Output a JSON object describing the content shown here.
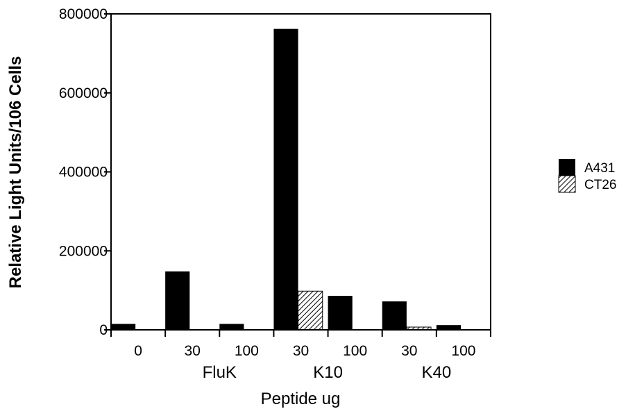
{
  "chart_data": {
    "type": "bar",
    "categories": [
      "0",
      "30",
      "100",
      "30",
      "100",
      "30",
      "100"
    ],
    "groups": [
      {
        "label": "FluK",
        "span": [
          1,
          2
        ]
      },
      {
        "label": "K10",
        "span": [
          3,
          4
        ]
      },
      {
        "label": "K40",
        "span": [
          5,
          6
        ]
      }
    ],
    "series": [
      {
        "name": "A431",
        "values": [
          15000,
          148000,
          15000,
          762000,
          86000,
          72000,
          12000
        ]
      },
      {
        "name": "CT26",
        "values": [
          0,
          0,
          0,
          98000,
          0,
          7000,
          0
        ]
      }
    ],
    "xlabel": "Peptide ug",
    "ylabel": "Relative Light Units/106 Cells",
    "ylim": [
      0,
      800000
    ],
    "yticks": [
      0,
      200000,
      400000,
      600000,
      800000
    ],
    "ytick_labels": [
      "0",
      "200000",
      "400000",
      "600000",
      "800000"
    ],
    "grid": false,
    "legend_position": "right",
    "colors": {
      "A431": "#000000",
      "CT26": "hatched"
    }
  }
}
